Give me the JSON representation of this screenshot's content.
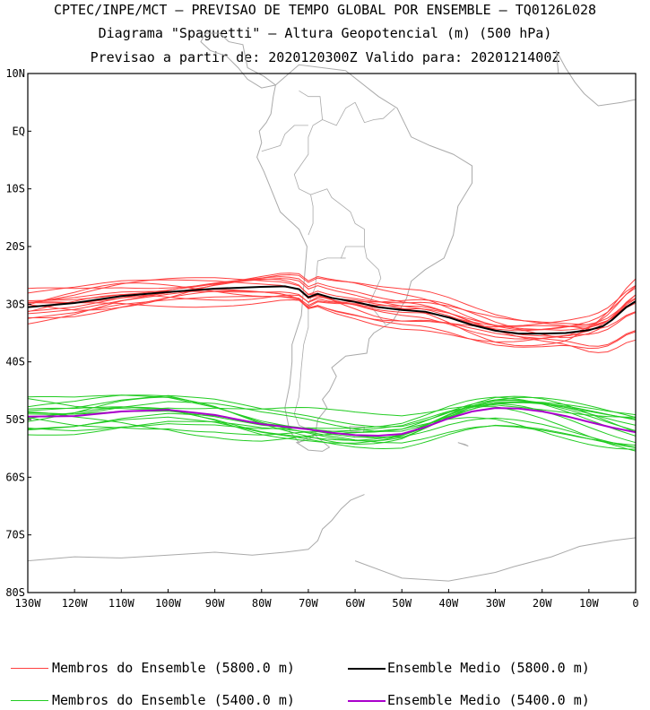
{
  "header": {
    "line1": "CPTEC/INPE/MCT — PREVISAO DE TEMPO GLOBAL POR ENSEMBLE — TQ0126L028",
    "line2": "Diagrama \"Spaguetti\" — Altura Geopotencial (m) (500 hPa)",
    "line3": "Previsao a partir de: 2020120300Z  Valido para: 2020121400Z"
  },
  "map": {
    "lat_labels": [
      "10N",
      "EQ",
      "10S",
      "20S",
      "30S",
      "40S",
      "50S",
      "60S",
      "70S",
      "80S"
    ],
    "lat_values": [
      10,
      0,
      -10,
      -20,
      -30,
      -40,
      -50,
      -60,
      -70,
      -80
    ],
    "lon_labels": [
      "130W",
      "120W",
      "110W",
      "100W",
      "90W",
      "80W",
      "70W",
      "60W",
      "50W",
      "40W",
      "30W",
      "20W",
      "10W",
      "0"
    ],
    "lon_values": [
      -130,
      -120,
      -110,
      -100,
      -90,
      -80,
      -70,
      -60,
      -50,
      -40,
      -30,
      -20,
      -10,
      0
    ],
    "lon_range": [
      -130,
      0
    ],
    "lat_range": [
      -80,
      10
    ],
    "coastline_color": "#aaaaaa",
    "colors": {
      "members_5800": "#ff4040",
      "mean_5800": "#000000",
      "members_5400": "#22cc22",
      "mean_5400": "#aa00cc"
    },
    "mean_5800": {
      "lon": [
        -130,
        -120,
        -110,
        -100,
        -90,
        -80,
        -75,
        -72,
        -70,
        -68,
        -65,
        -60,
        -55,
        -50,
        -45,
        -40,
        -35,
        -30,
        -25,
        -20,
        -15,
        -10,
        -7,
        -5,
        -2,
        0
      ],
      "lat": [
        -30.5,
        -29.8,
        -28.6,
        -27.9,
        -27.3,
        -27.0,
        -26.9,
        -27.4,
        -28.8,
        -28.2,
        -28.9,
        -29.6,
        -30.5,
        -31.0,
        -31.3,
        -32.3,
        -33.6,
        -34.6,
        -35.1,
        -35.1,
        -35.0,
        -34.5,
        -33.8,
        -32.7,
        -30.5,
        -29.5
      ]
    },
    "mean_5400": {
      "lon": [
        -130,
        -120,
        -110,
        -100,
        -90,
        -80,
        -70,
        -65,
        -60,
        -55,
        -50,
        -45,
        -40,
        -35,
        -30,
        -25,
        -20,
        -15,
        -10,
        -5,
        0
      ],
      "lat": [
        -49.5,
        -49.4,
        -48.6,
        -48.3,
        -49.2,
        -50.8,
        -51.7,
        -52.3,
        -52.7,
        -52.8,
        -52.5,
        -51.3,
        -49.8,
        -48.6,
        -48.0,
        -48.1,
        -48.6,
        -49.4,
        -50.4,
        -51.4,
        -52.2
      ]
    }
  },
  "legend": {
    "members_5800_label": "Membros do Ensemble (5800.0 m)",
    "mean_5800_label": "Ensemble Medio (5800.0 m)",
    "members_5400_label": "Membros do Ensemble (5400.0 m)",
    "mean_5400_label": "Ensemble Medio (5400.0 m)"
  }
}
